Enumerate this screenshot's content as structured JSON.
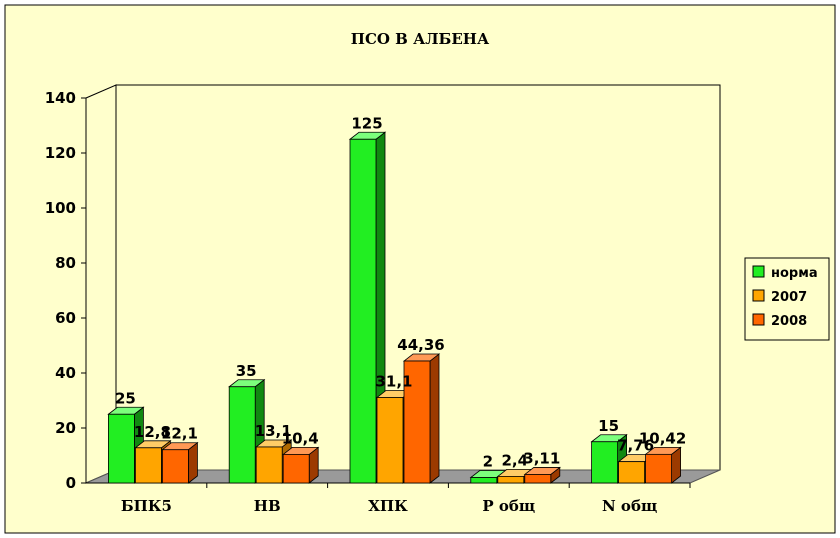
{
  "chart_data": {
    "type": "bar",
    "title": "ПСО В АЛБЕНА",
    "categories": [
      "БПК5",
      "НВ",
      "ХПК",
      "Р общ",
      "N общ"
    ],
    "series": [
      {
        "name": "норма",
        "values": [
          25,
          35,
          125,
          2,
          15
        ],
        "labels": [
          "25",
          "35",
          "125",
          "2",
          "15"
        ]
      },
      {
        "name": "2007",
        "values": [
          12.8,
          13.1,
          31.1,
          2.4,
          7.76
        ],
        "labels": [
          "12,8",
          "13,1",
          "31,1",
          "2,4",
          "7,76"
        ]
      },
      {
        "name": "2008",
        "values": [
          12.1,
          10.4,
          44.36,
          3.11,
          10.42
        ],
        "labels": [
          "12,1",
          "10,4",
          "44,36",
          "3,11",
          "10,42"
        ]
      }
    ],
    "yticks": [
      "0",
      "20",
      "40",
      "60",
      "80",
      "100",
      "120",
      "140"
    ],
    "ylim": [
      0,
      140
    ],
    "grid": false,
    "legend": "right",
    "colors": {
      "series_front": [
        "#22ee22",
        "#ffa500",
        "#ff6600"
      ],
      "series_side": [
        "#118811",
        "#b06a00",
        "#9c3a00"
      ],
      "series_top": [
        "#7cff7c",
        "#ffcc66",
        "#ff9955"
      ],
      "plot_background": "#ffffcc",
      "floor": "#9a9a9a",
      "frame": "#000000"
    }
  }
}
